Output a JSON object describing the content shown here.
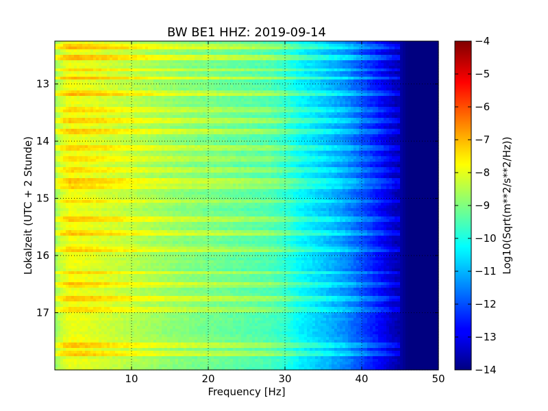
{
  "chart_data": {
    "type": "heatmap",
    "title": "BW BE1 HHZ: 2019-09-14",
    "xlabel": "Frequency [Hz]",
    "ylabel": "Lokalzeit (UTC + 2 Stunde)",
    "xlim": [
      0,
      50
    ],
    "ylim": [
      12.25,
      18.0
    ],
    "x_ticks": [
      "10",
      "20",
      "30",
      "40",
      "50"
    ],
    "y_ticks": [
      "13",
      "14",
      "15",
      "16",
      "17"
    ],
    "y_inverted": true,
    "grid": true,
    "colorscale": "jet",
    "colorbar": {
      "label": "Log10(Sqrt(m**2/s**2/Hz))",
      "range": [
        -14,
        -4
      ],
      "ticks": [
        "-4",
        "-5",
        "-6",
        "-7",
        "-8",
        "-9",
        "-10",
        "-11",
        "-12",
        "-13",
        "-14"
      ]
    },
    "spectral_profile": {
      "frequency_hz": [
        0,
        1,
        2,
        4,
        8,
        12,
        16,
        20,
        24,
        28,
        30,
        32,
        35,
        38,
        40,
        42,
        44,
        45,
        46,
        50
      ],
      "log10_amplitude": [
        -8.8,
        -8.2,
        -7.9,
        -8.0,
        -8.3,
        -8.6,
        -8.9,
        -9.1,
        -9.3,
        -9.5,
        -9.8,
        -10.3,
        -10.8,
        -11.4,
        -12.0,
        -12.6,
        -13.3,
        -13.6,
        -14.0,
        -14.0
      ]
    },
    "noisy_hours": [
      12.35,
      12.55,
      12.75,
      12.9,
      13.15,
      13.45,
      13.65,
      13.85,
      14.1,
      14.3,
      14.5,
      14.7,
      14.8,
      15.05,
      15.35,
      15.6,
      15.9,
      16.3,
      16.5,
      16.75,
      16.95,
      17.55,
      17.7
    ]
  }
}
